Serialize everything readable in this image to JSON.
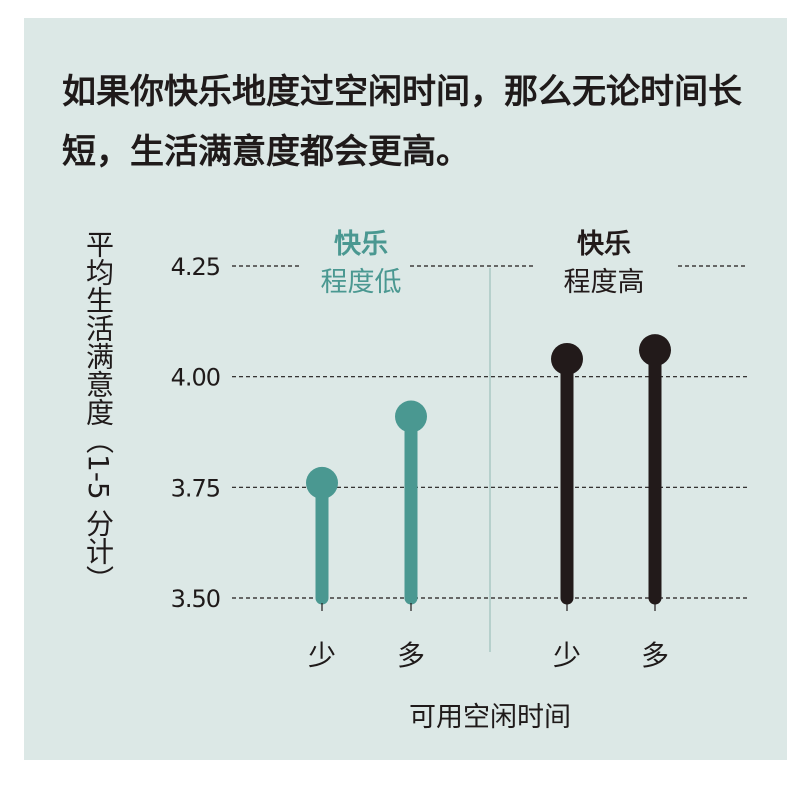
{
  "headline": "如果你快乐地度过空闲时间，那么无论时间长短，生活满意度都会更高。",
  "chart_data": {
    "type": "scatter",
    "style": "lollipop",
    "ylabel": "平均生活满意度（1-5 分计）",
    "xlabel": "可用空闲时间",
    "ylim": [
      3.5,
      4.25
    ],
    "yticks": [
      "3.50",
      "3.75",
      "4.00",
      "4.25"
    ],
    "grid": "horizontal dashed",
    "groups": [
      {
        "name_line1": "快乐",
        "name_line2": "程度低",
        "color": "#4a9891",
        "categories": [
          "少",
          "多"
        ],
        "values": [
          3.76,
          3.91
        ]
      },
      {
        "name_line1": "快乐",
        "name_line2": "程度高",
        "color": "#221a1a",
        "categories": [
          "少",
          "多"
        ],
        "values": [
          4.04,
          4.06
        ]
      }
    ]
  }
}
